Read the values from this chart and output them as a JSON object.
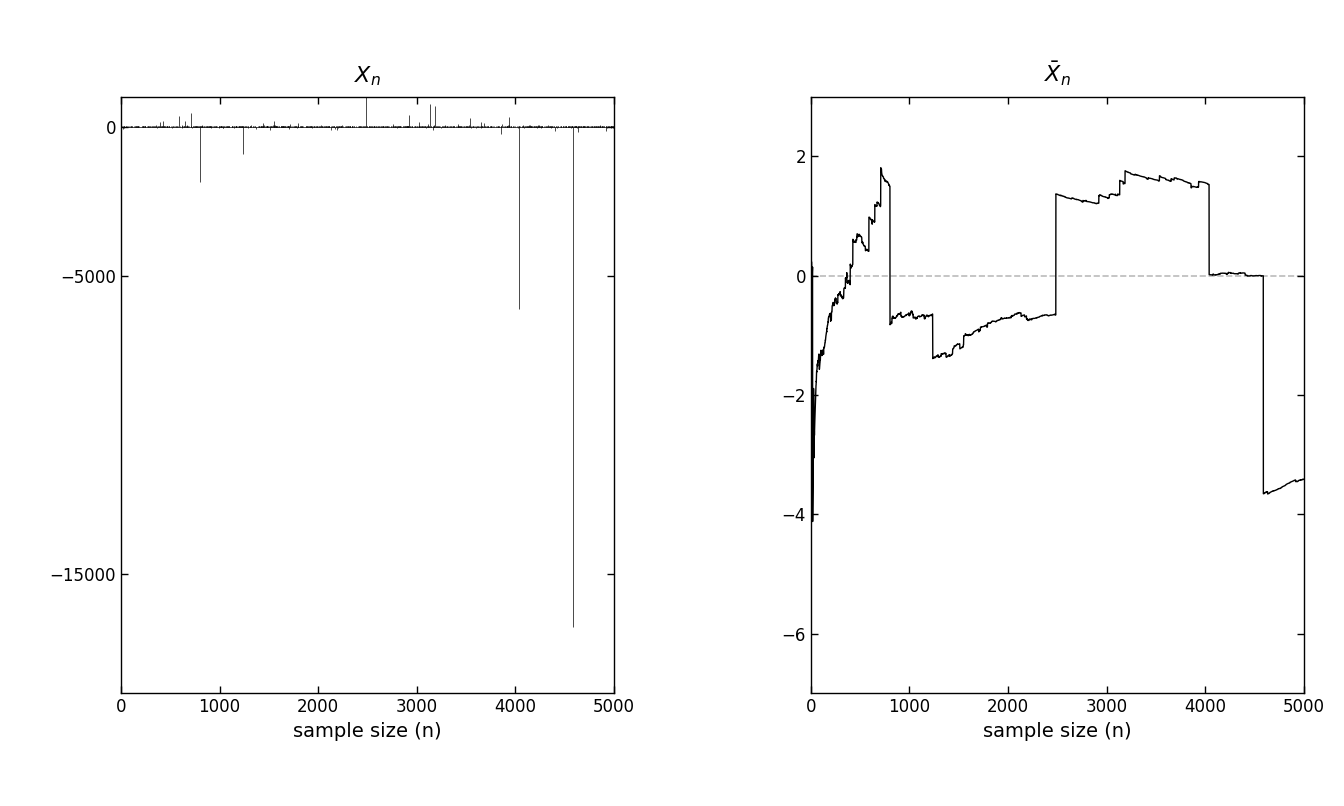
{
  "n": 5000,
  "xlabel": "sample size (n)",
  "left_yticks": [
    0,
    -5000,
    -15000
  ],
  "right_yticks": [
    2,
    0,
    -2,
    -4,
    -6
  ],
  "left_ylim": [
    -19000,
    1000
  ],
  "right_ylim": [
    -7,
    3
  ],
  "xlim": [
    0,
    5000
  ],
  "xticks": [
    0,
    1000,
    2000,
    3000,
    4000,
    5000
  ],
  "line_color": "#000000",
  "dashed_color": "#bbbbbb",
  "bg_color": "#ffffff",
  "linewidth": 1.0,
  "dashed_linewidth": 1.2,
  "tick_fontsize": 12,
  "label_fontsize": 14,
  "title_fontsize": 16
}
